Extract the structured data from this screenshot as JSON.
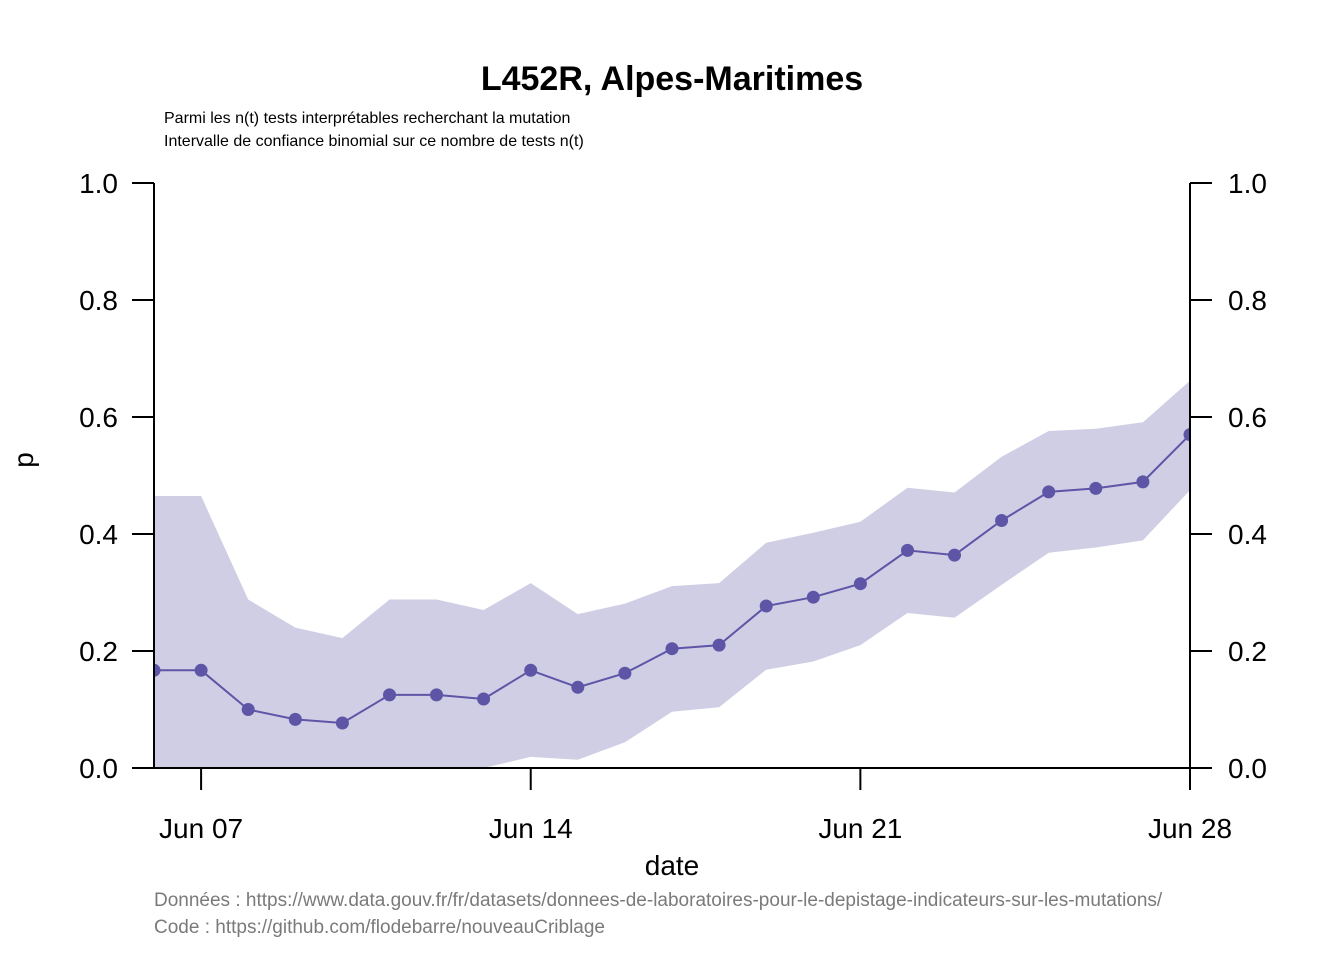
{
  "colors": {
    "band": "#d0cee5",
    "series": "#5e55a6"
  },
  "chart_data": {
    "type": "line",
    "title": "L452R, Alpes-Maritimes",
    "subtitle_lines": [
      "Parmi les n(t) tests interprétables recherchant la mutation",
      "Intervalle de confiance binomial sur ce nombre de tests n(t)"
    ],
    "xlabel": "date",
    "ylabel": "p",
    "x_ticks": [
      "Jun 07",
      "Jun 14",
      "Jun 21",
      "Jun 28"
    ],
    "y_ticks": [
      "0.0",
      "0.2",
      "0.4",
      "0.6",
      "0.8",
      "1.0"
    ],
    "ylim": [
      0,
      1
    ],
    "xlim": [
      "2021-06-06",
      "2021-06-28"
    ],
    "x": [
      "2021-06-06",
      "2021-06-07",
      "2021-06-08",
      "2021-06-09",
      "2021-06-10",
      "2021-06-11",
      "2021-06-12",
      "2021-06-13",
      "2021-06-14",
      "2021-06-15",
      "2021-06-16",
      "2021-06-17",
      "2021-06-18",
      "2021-06-19",
      "2021-06-20",
      "2021-06-21",
      "2021-06-22",
      "2021-06-23",
      "2021-06-24",
      "2021-06-25",
      "2021-06-26",
      "2021-06-27",
      "2021-06-28"
    ],
    "series": [
      {
        "values": [
          0.167,
          0.167,
          0.1,
          0.083,
          0.077,
          0.125,
          0.125,
          0.118,
          0.167,
          0.138,
          0.162,
          0.204,
          0.21,
          0.277,
          0.292,
          0.315,
          0.372,
          0.364,
          0.423,
          0.472,
          0.478,
          0.489,
          0.57
        ],
        "lower": [
          0.0,
          0.0,
          0.0,
          0.0,
          0.0,
          0.0,
          0.0,
          0.0,
          0.019,
          0.014,
          0.044,
          0.096,
          0.104,
          0.168,
          0.182,
          0.21,
          0.265,
          0.257,
          0.313,
          0.368,
          0.377,
          0.389,
          0.475
        ],
        "upper": [
          0.465,
          0.465,
          0.288,
          0.24,
          0.222,
          0.288,
          0.288,
          0.27,
          0.316,
          0.263,
          0.281,
          0.311,
          0.316,
          0.385,
          0.402,
          0.421,
          0.479,
          0.471,
          0.532,
          0.576,
          0.58,
          0.591,
          0.662
        ]
      }
    ],
    "grid": false,
    "caption_lines": [
      "Données : https://www.data.gouv.fr/fr/datasets/donnees-de-laboratoires-pour-le-depistage-indicateurs-sur-les-mutations/",
      "Code : https://github.com/flodebarre/nouveauCriblage"
    ]
  }
}
